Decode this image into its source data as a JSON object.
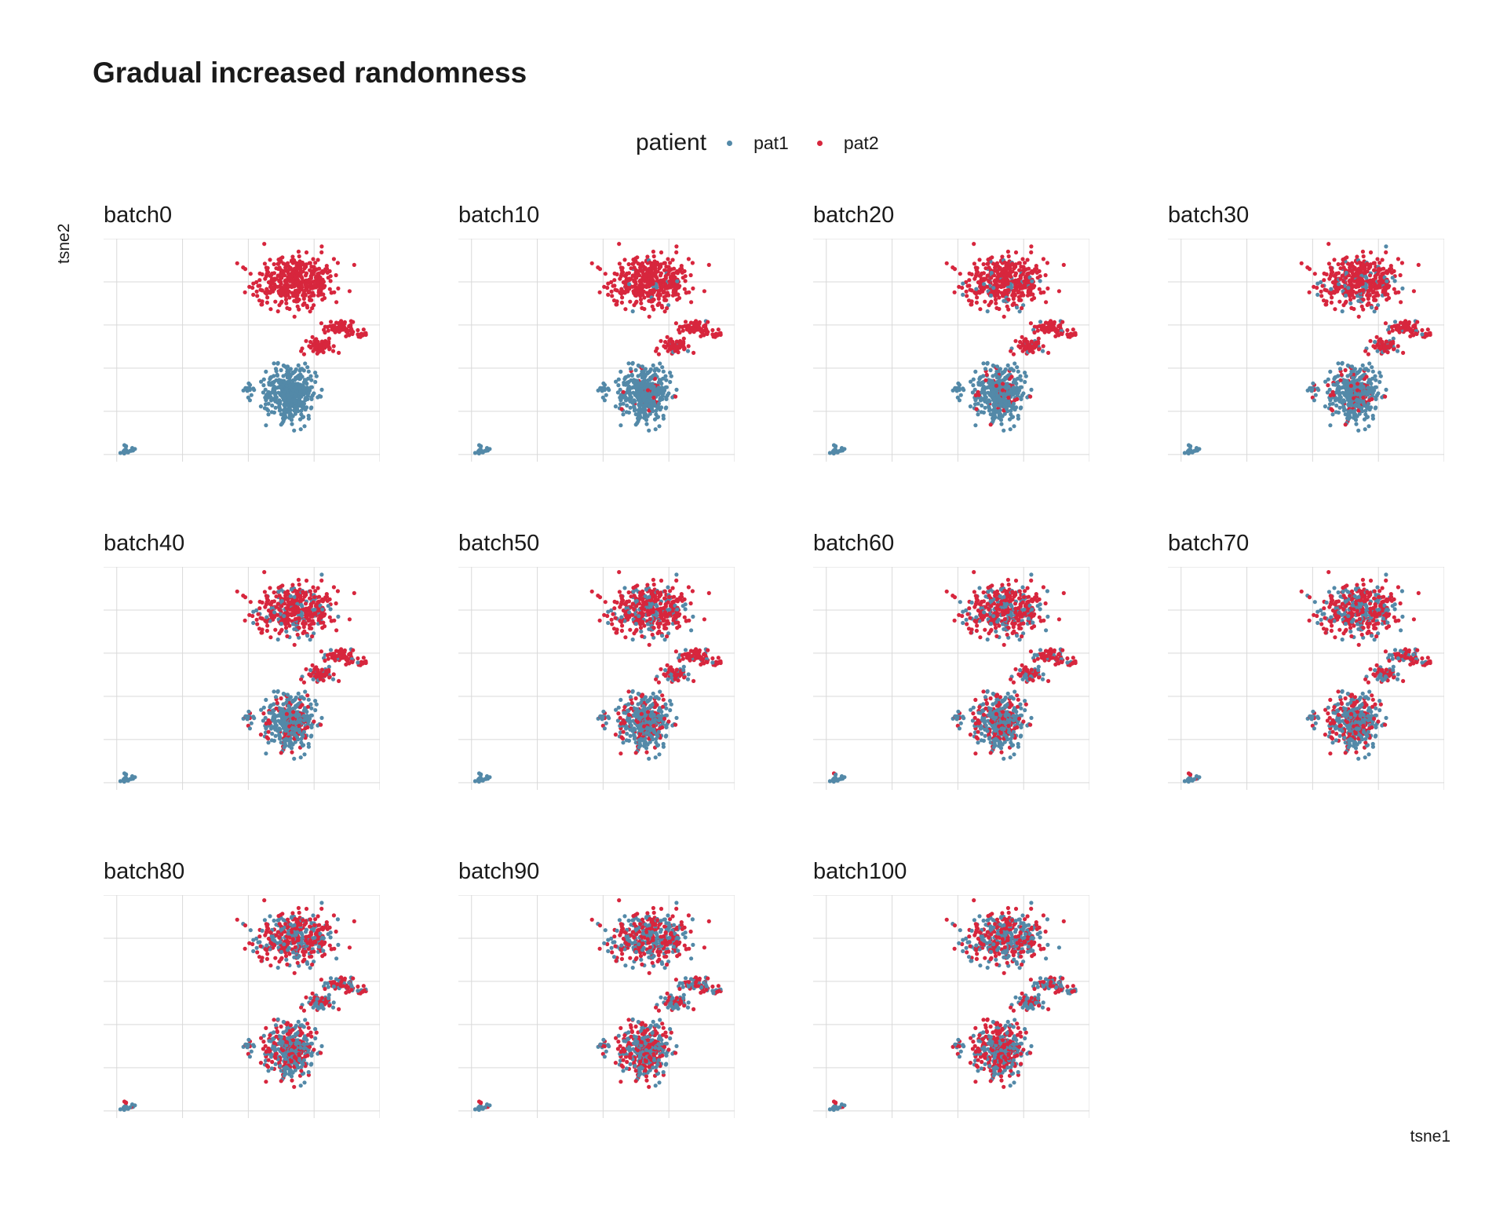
{
  "title": "Gradual increased randomness",
  "legend": {
    "title": "patient",
    "items": [
      {
        "label": "pat1",
        "color": "#5389A8"
      },
      {
        "label": "pat2",
        "color": "#D7263D"
      }
    ]
  },
  "chart_data": {
    "type": "scatter",
    "xlabel": "tsne1",
    "ylabel": "tsne2",
    "facets": [
      "batch0",
      "batch10",
      "batch20",
      "batch30",
      "batch40",
      "batch50",
      "batch60",
      "batch70",
      "batch80",
      "batch90",
      "batch100"
    ],
    "facet_mix_fraction": [
      0.0,
      0.1,
      0.2,
      0.3,
      0.4,
      0.5,
      0.6,
      0.7,
      0.8,
      0.9,
      1.0
    ],
    "series": [
      {
        "name": "pat1",
        "color": "#5389A8"
      },
      {
        "name": "pat2",
        "color": "#D7263D"
      }
    ],
    "xlim": [
      -2,
      40
    ],
    "ylim": [
      -1,
      30
    ],
    "grid": true,
    "legend_position": "top",
    "clusters": [
      {
        "patient": "pat2",
        "center": [
          27,
          24
        ],
        "spread": [
          5.5,
          3.2
        ],
        "n": 420
      },
      {
        "patient": "pat2",
        "center": [
          34,
          17.5
        ],
        "spread": [
          2.2,
          1.2
        ],
        "n": 70
      },
      {
        "patient": "pat2",
        "center": [
          31,
          15
        ],
        "spread": [
          2.2,
          1.0
        ],
        "n": 60
      },
      {
        "patient": "pat2",
        "center": [
          37.5,
          16.5
        ],
        "spread": [
          1.3,
          0.6
        ],
        "n": 10
      },
      {
        "patient": "pat1",
        "center": [
          26.5,
          8.5
        ],
        "spread": [
          3.4,
          3.4
        ],
        "n": 430
      },
      {
        "patient": "pat1",
        "center": [
          20,
          9
        ],
        "spread": [
          0.6,
          0.9
        ],
        "n": 15
      },
      {
        "patient": "pat1",
        "center": [
          1.5,
          0.8
        ],
        "spread": [
          0.8,
          0.6
        ],
        "n": 18
      }
    ]
  }
}
